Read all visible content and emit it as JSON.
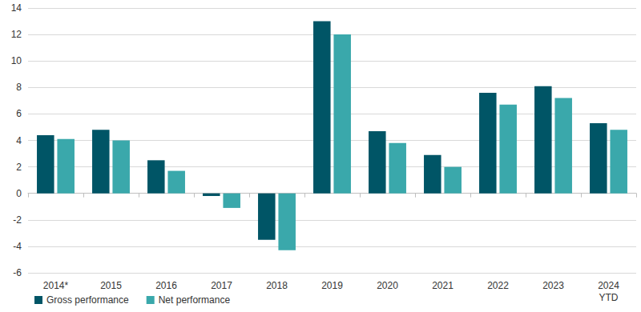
{
  "chart_data": {
    "type": "bar",
    "categories": [
      "2014*",
      "2015",
      "2016",
      "2017",
      "2018",
      "2019",
      "2020",
      "2021",
      "2022",
      "2023",
      "2024\nYTD"
    ],
    "series": [
      {
        "name": "Gross performance",
        "color": "#005566",
        "values": [
          4.4,
          4.8,
          2.5,
          -0.2,
          -3.5,
          13.0,
          4.7,
          2.9,
          7.6,
          8.1,
          5.3
        ]
      },
      {
        "name": "Net performance",
        "color": "#3aa8ab",
        "values": [
          4.1,
          4.0,
          1.7,
          -1.1,
          -4.3,
          12.0,
          3.8,
          2.0,
          6.7,
          7.2,
          4.8
        ]
      }
    ],
    "ylim": [
      -6,
      14
    ],
    "yticks": [
      -6,
      -4,
      -2,
      0,
      2,
      4,
      6,
      8,
      10,
      12,
      14
    ],
    "grid": true,
    "legend": "lower left"
  }
}
